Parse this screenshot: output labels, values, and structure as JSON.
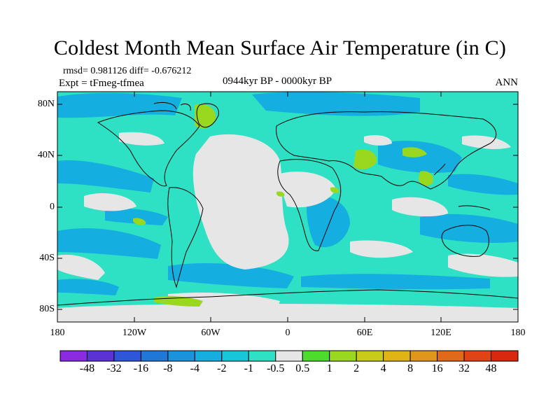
{
  "title": "Coldest Month Mean Surface Air Temperature (in C)",
  "stats": "rmsd= 0.981126  diff= -0.676212",
  "experiment": "Expt = tFmeg-tfmea",
  "period": "0944kyr BP - 0000kyr BP",
  "season": "ANN",
  "lat_labels": [
    "80N",
    "40N",
    "0",
    "40S",
    "80S"
  ],
  "lon_labels": [
    "180",
    "120W",
    "60W",
    "0",
    "60E",
    "120E",
    "180"
  ],
  "colorbar": {
    "labels": [
      "-48",
      "-32",
      "-16",
      "-8",
      "-4",
      "-2",
      "-1",
      "-0.5",
      "0.5",
      "1",
      "2",
      "4",
      "8",
      "16",
      "32",
      "48"
    ],
    "colors": [
      "#8a2be2",
      "#5a32d6",
      "#2e56d8",
      "#1f78d8",
      "#1a93dc",
      "#14aee0",
      "#17c6d8",
      "#2ee0c4",
      "#e6e6e6",
      "#4cdc2c",
      "#9ad820",
      "#c8cc18",
      "#e0b414",
      "#e0961a",
      "#e06a1a",
      "#e04414",
      "#d8280e"
    ]
  },
  "legend_colors": {
    "ocean_anomaly": "#14aee0",
    "small_anomaly": "#2ee0c4",
    "neutral": "#e6e6e6",
    "warm": "#9ad820",
    "coastline": "#000000"
  }
}
